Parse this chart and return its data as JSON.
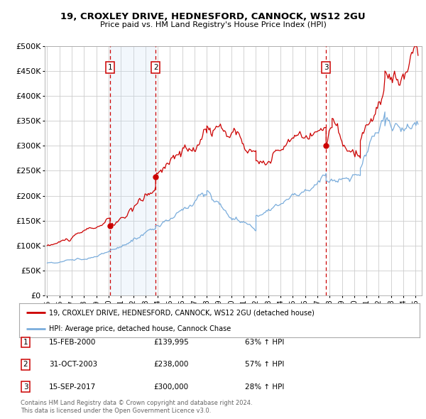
{
  "title1": "19, CROXLEY DRIVE, HEDNESFORD, CANNOCK, WS12 2GU",
  "title2": "Price paid vs. HM Land Registry's House Price Index (HPI)",
  "ylabel_ticks": [
    "£0",
    "£50K",
    "£100K",
    "£150K",
    "£200K",
    "£250K",
    "£300K",
    "£350K",
    "£400K",
    "£450K",
    "£500K"
  ],
  "ytick_values": [
    0,
    50000,
    100000,
    150000,
    200000,
    250000,
    300000,
    350000,
    400000,
    450000,
    500000
  ],
  "xlim_start": 1994.8,
  "xlim_end": 2025.5,
  "ylim_min": 0,
  "ylim_max": 500000,
  "sale_dates": [
    2000.12,
    2003.83,
    2017.71
  ],
  "sale_prices": [
    139995,
    238000,
    300000
  ],
  "sale_labels": [
    "1",
    "2",
    "3"
  ],
  "sale_date_strings": [
    "15-FEB-2000",
    "31-OCT-2003",
    "15-SEP-2017"
  ],
  "sale_price_strings": [
    "£139,995",
    "£238,000",
    "£300,000"
  ],
  "sale_hpi_strings": [
    "63% ↑ HPI",
    "57% ↑ HPI",
    "28% ↑ HPI"
  ],
  "red_color": "#cc0000",
  "blue_color": "#7aaddc",
  "shade_color": "#ddeeff",
  "grid_color": "#cccccc",
  "background_color": "#ffffff",
  "legend_label_red": "19, CROXLEY DRIVE, HEDNESFORD, CANNOCK, WS12 2GU (detached house)",
  "legend_label_blue": "HPI: Average price, detached house, Cannock Chase",
  "footer1": "Contains HM Land Registry data © Crown copyright and database right 2024.",
  "footer2": "This data is licensed under the Open Government Licence v3.0."
}
